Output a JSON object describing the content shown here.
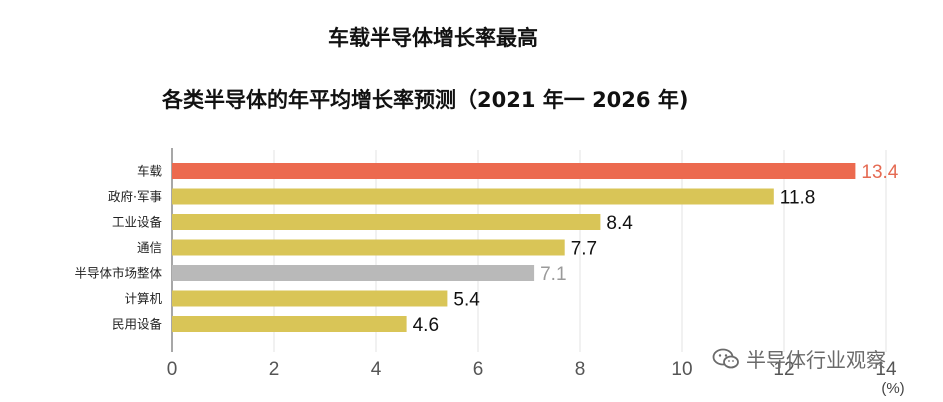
{
  "chart_data": {
    "type": "bar",
    "orientation": "horizontal",
    "title": "车载半导体增长率最高",
    "subtitle": "各类半导体的年平均增长率预测（2021 年一 2026 年)",
    "categories": [
      "车载",
      "政府·军事",
      "工业设备",
      "通信",
      "半导体市场整体",
      "计算机",
      "民用设备"
    ],
    "values": [
      13.4,
      11.8,
      8.4,
      7.7,
      7.1,
      5.4,
      4.6
    ],
    "value_labels": [
      "13.4",
      "11.8",
      "8.4",
      "7.7",
      "7.1",
      "5.4",
      "4.6"
    ],
    "bar_colors": [
      "#ec6a4f",
      "#d9c557",
      "#d9c557",
      "#d9c557",
      "#b9b9b9",
      "#d9c557",
      "#d9c557"
    ],
    "label_colors": [
      "#e56a52",
      "#111111",
      "#111111",
      "#111111",
      "#9a9a9a",
      "#111111",
      "#111111"
    ],
    "x_ticks": [
      "0",
      "2",
      "4",
      "6",
      "8",
      "10",
      "12",
      "14"
    ],
    "unit_label": "(%)",
    "xlim": [
      0,
      14
    ],
    "grid": "vertical"
  },
  "watermark": {
    "text": "半导体行业观察",
    "icon": "wechat-icon"
  }
}
